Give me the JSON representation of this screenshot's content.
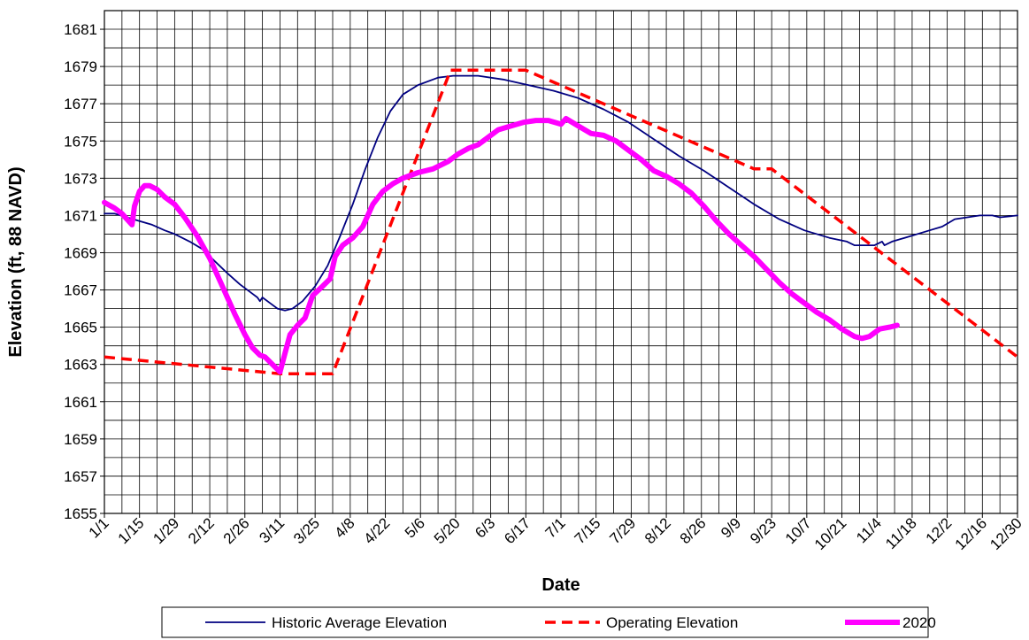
{
  "chart_data": {
    "type": "line",
    "xlabel": "Date",
    "ylabel": "Elevation (ft, 88 NAVD)",
    "x_tick_labels": [
      "1/1",
      "1/15",
      "1/29",
      "2/12",
      "2/26",
      "3/11",
      "3/25",
      "4/8",
      "4/22",
      "5/6",
      "5/20",
      "6/3",
      "6/17",
      "7/1",
      "7/15",
      "7/29",
      "8/12",
      "8/26",
      "9/9",
      "9/23",
      "10/7",
      "10/21",
      "11/4",
      "11/18",
      "12/2",
      "12/16",
      "12/30"
    ],
    "y_tick_labels": [
      "1655",
      "1657",
      "1659",
      "1661",
      "1663",
      "1665",
      "1667",
      "1669",
      "1671",
      "1673",
      "1675",
      "1677",
      "1679",
      "1681"
    ],
    "xlim_day_of_year": [
      1,
      365
    ],
    "ylim": [
      1655,
      1682
    ],
    "grid": true,
    "legend_position": "bottom",
    "series": [
      {
        "name": "Historic Average Elevation",
        "color": "#000080",
        "style": "solid-thin",
        "points": [
          [
            1,
            1671.1
          ],
          [
            5,
            1671.1
          ],
          [
            10,
            1670.9
          ],
          [
            15,
            1670.7
          ],
          [
            20,
            1670.5
          ],
          [
            25,
            1670.2
          ],
          [
            29,
            1670.0
          ],
          [
            35,
            1669.6
          ],
          [
            40,
            1669.2
          ],
          [
            43,
            1668.8
          ],
          [
            50,
            1667.9
          ],
          [
            55,
            1667.3
          ],
          [
            60,
            1666.8
          ],
          [
            62,
            1666.6
          ],
          [
            63,
            1666.4
          ],
          [
            64,
            1666.6
          ],
          [
            67,
            1666.3
          ],
          [
            70,
            1666.0
          ],
          [
            73,
            1665.9
          ],
          [
            76,
            1666.0
          ],
          [
            80,
            1666.4
          ],
          [
            85,
            1667.2
          ],
          [
            90,
            1668.3
          ],
          [
            95,
            1669.9
          ],
          [
            100,
            1671.6
          ],
          [
            105,
            1673.5
          ],
          [
            110,
            1675.2
          ],
          [
            115,
            1676.6
          ],
          [
            120,
            1677.5
          ],
          [
            126,
            1678.0
          ],
          [
            134,
            1678.4
          ],
          [
            140,
            1678.5
          ],
          [
            150,
            1678.5
          ],
          [
            160,
            1678.3
          ],
          [
            170,
            1678.0
          ],
          [
            180,
            1677.7
          ],
          [
            190,
            1677.3
          ],
          [
            200,
            1676.7
          ],
          [
            210,
            1676.0
          ],
          [
            220,
            1675.1
          ],
          [
            230,
            1674.2
          ],
          [
            240,
            1673.4
          ],
          [
            250,
            1672.5
          ],
          [
            260,
            1671.6
          ],
          [
            270,
            1670.8
          ],
          [
            280,
            1670.2
          ],
          [
            290,
            1669.8
          ],
          [
            297,
            1669.6
          ],
          [
            300,
            1669.4
          ],
          [
            305,
            1669.4
          ],
          [
            308,
            1669.4
          ],
          [
            311,
            1669.6
          ],
          [
            312,
            1669.4
          ],
          [
            315,
            1669.6
          ],
          [
            320,
            1669.8
          ],
          [
            330,
            1670.2
          ],
          [
            335,
            1670.4
          ],
          [
            340,
            1670.8
          ],
          [
            345,
            1670.9
          ],
          [
            350,
            1671.0
          ],
          [
            355,
            1671.0
          ],
          [
            358,
            1670.9
          ],
          [
            365,
            1671.0
          ]
        ]
      },
      {
        "name": "Operating Elevation",
        "color": "#ff0000",
        "style": "dashed",
        "points": [
          [
            1,
            1663.4
          ],
          [
            71,
            1662.5
          ],
          [
            92,
            1662.5
          ],
          [
            139,
            1678.8
          ],
          [
            169,
            1678.8
          ],
          [
            260,
            1673.5
          ],
          [
            267,
            1673.5
          ],
          [
            365,
            1663.4
          ]
        ]
      },
      {
        "name": "2020",
        "color": "#ff00ff",
        "style": "solid-thick",
        "points": [
          [
            1,
            1671.7
          ],
          [
            5,
            1671.4
          ],
          [
            8,
            1671.1
          ],
          [
            10,
            1670.8
          ],
          [
            12,
            1670.5
          ],
          [
            13,
            1671.5
          ],
          [
            15,
            1672.3
          ],
          [
            17,
            1672.6
          ],
          [
            19,
            1672.6
          ],
          [
            22,
            1672.4
          ],
          [
            25,
            1672.0
          ],
          [
            29,
            1671.6
          ],
          [
            33,
            1670.9
          ],
          [
            38,
            1669.9
          ],
          [
            43,
            1668.7
          ],
          [
            48,
            1667.2
          ],
          [
            53,
            1665.7
          ],
          [
            57,
            1664.6
          ],
          [
            60,
            1663.9
          ],
          [
            63,
            1663.5
          ],
          [
            65,
            1663.4
          ],
          [
            68,
            1663.0
          ],
          [
            71,
            1662.6
          ],
          [
            73,
            1663.6
          ],
          [
            75,
            1664.6
          ],
          [
            78,
            1665.1
          ],
          [
            81,
            1665.5
          ],
          [
            84,
            1666.7
          ],
          [
            88,
            1667.2
          ],
          [
            91,
            1667.6
          ],
          [
            93,
            1668.8
          ],
          [
            96,
            1669.4
          ],
          [
            100,
            1669.8
          ],
          [
            104,
            1670.4
          ],
          [
            108,
            1671.6
          ],
          [
            112,
            1672.3
          ],
          [
            116,
            1672.7
          ],
          [
            120,
            1673.0
          ],
          [
            126,
            1673.3
          ],
          [
            132,
            1673.5
          ],
          [
            138,
            1673.9
          ],
          [
            142,
            1674.3
          ],
          [
            146,
            1674.6
          ],
          [
            150,
            1674.8
          ],
          [
            154,
            1675.2
          ],
          [
            158,
            1675.6
          ],
          [
            163,
            1675.8
          ],
          [
            168,
            1676.0
          ],
          [
            173,
            1676.1
          ],
          [
            178,
            1676.1
          ],
          [
            183,
            1675.9
          ],
          [
            185,
            1676.2
          ],
          [
            190,
            1675.8
          ],
          [
            195,
            1675.4
          ],
          [
            200,
            1675.3
          ],
          [
            205,
            1675.0
          ],
          [
            210,
            1674.5
          ],
          [
            215,
            1674.0
          ],
          [
            220,
            1673.4
          ],
          [
            225,
            1673.1
          ],
          [
            230,
            1672.7
          ],
          [
            235,
            1672.2
          ],
          [
            240,
            1671.5
          ],
          [
            245,
            1670.7
          ],
          [
            250,
            1670.0
          ],
          [
            255,
            1669.4
          ],
          [
            260,
            1668.8
          ],
          [
            265,
            1668.1
          ],
          [
            270,
            1667.4
          ],
          [
            275,
            1666.8
          ],
          [
            280,
            1666.3
          ],
          [
            285,
            1665.8
          ],
          [
            290,
            1665.4
          ],
          [
            295,
            1664.9
          ],
          [
            300,
            1664.5
          ],
          [
            303,
            1664.4
          ],
          [
            306,
            1664.5
          ],
          [
            310,
            1664.9
          ],
          [
            314,
            1665.0
          ],
          [
            317,
            1665.1
          ]
        ]
      }
    ]
  }
}
